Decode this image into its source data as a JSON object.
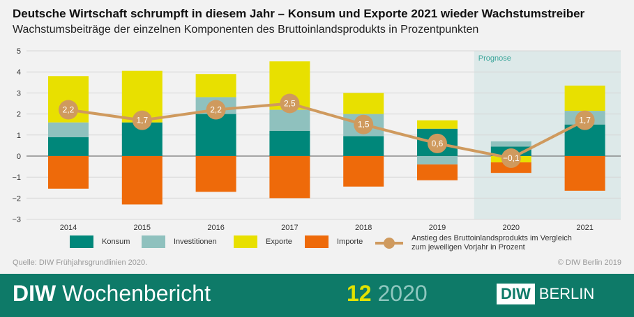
{
  "title": "Deutsche Wirtschaft schrumpft in diesem Jahr – Konsum und Exporte 2021 wieder Wachstumstreiber",
  "subtitle": "Wachstumsbeiträge der einzelnen Komponenten des Bruttoinlandsprodukts in Prozentpunkten",
  "chart_data": {
    "type": "bar",
    "stacked": true,
    "categories": [
      "2014",
      "2015",
      "2016",
      "2017",
      "2018",
      "2019",
      "2020",
      "2021"
    ],
    "ylim": [
      -3,
      5
    ],
    "yticks": [
      "−3",
      "−2",
      "−1",
      "0",
      "1",
      "2",
      "3",
      "4",
      "5"
    ],
    "grid": true,
    "annotation": "Prognose",
    "forecast_categories": [
      "2020",
      "2021"
    ],
    "series": [
      {
        "name": "Konsum",
        "color": "#00877a",
        "values": [
          0.9,
          1.6,
          2.0,
          1.2,
          0.95,
          1.3,
          0.45,
          1.5
        ]
      },
      {
        "name": "Investitionen",
        "color": "#8fc1be",
        "values": [
          0.7,
          0.0,
          0.8,
          1.0,
          1.05,
          -0.4,
          0.25,
          0.65
        ]
      },
      {
        "name": "Exporte",
        "color": "#e8e000",
        "values": [
          2.2,
          2.45,
          1.1,
          2.3,
          1.0,
          0.4,
          -0.3,
          1.2
        ]
      },
      {
        "name": "Importe",
        "color": "#ee6a0a",
        "values": [
          -1.55,
          -2.3,
          -1.7,
          -2.0,
          -1.45,
          -0.75,
          -0.5,
          -1.65
        ]
      }
    ],
    "line": {
      "name": "Anstieg des Bruttoinlandsprodukts im Vergleich zum jeweiligen Vorjahr in Prozent",
      "color": "#cf9a5e",
      "values": [
        2.2,
        1.7,
        2.2,
        2.5,
        1.5,
        0.6,
        -0.1,
        1.7
      ],
      "labels": [
        "2,2",
        "1,7",
        "2,2",
        "2,5",
        "1,5",
        "0,6",
        "−0,1",
        "1,7"
      ]
    },
    "legend_placement": "bottom"
  },
  "legend": {
    "line_1": "Anstieg des Bruttoinlandsprodukts im Vergleich",
    "line_2": "zum jeweiligen Vorjahr in Prozent"
  },
  "source": "Quelle: DIW Frühjahrsgrundlinien 2020.",
  "copyright": "© DIW Berlin 2019",
  "footer": {
    "brand_bold": "DIW",
    "brand": "Wochenbericht",
    "issue_number": "12",
    "issue_year": "2020",
    "logo_box": "DIW",
    "logo_text": "BERLIN"
  }
}
